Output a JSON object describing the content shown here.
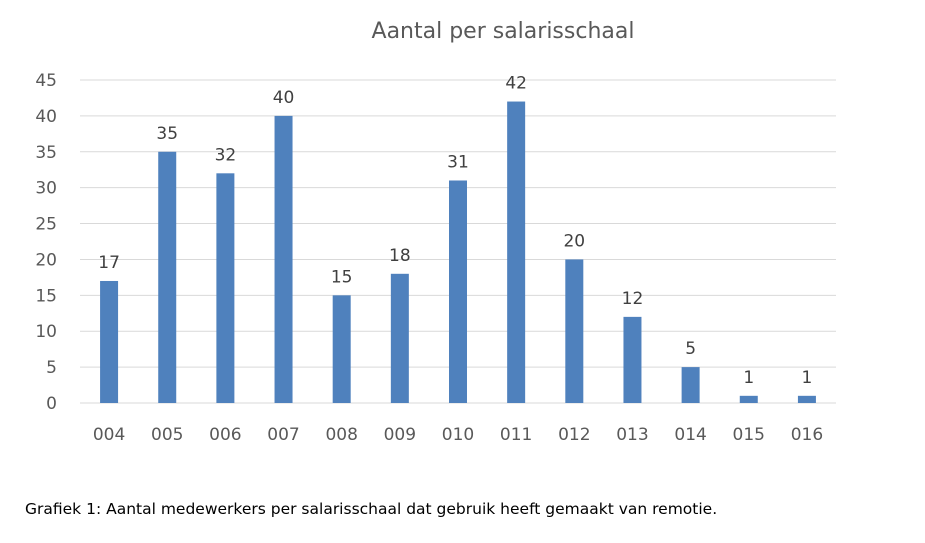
{
  "chart_data": {
    "type": "bar",
    "title": "Aantal per salarisschaal",
    "categories": [
      "004",
      "005",
      "006",
      "007",
      "008",
      "009",
      "010",
      "011",
      "012",
      "013",
      "014",
      "015",
      "016"
    ],
    "values": [
      17,
      35,
      32,
      40,
      15,
      18,
      31,
      42,
      20,
      12,
      5,
      1,
      1
    ],
    "xlabel": "",
    "ylabel": "",
    "ylim": [
      0,
      45
    ],
    "yticks": [
      0,
      5,
      10,
      15,
      20,
      25,
      30,
      35,
      40,
      45
    ],
    "grid": true,
    "legend": "none",
    "data_labels": true,
    "bar_color": "#4f81bd",
    "grid_color": "#d9d9d9"
  },
  "caption": "Grafiek 1: Aantal medewerkers per salarisschaal dat gebruik heeft gemaakt van remotie."
}
